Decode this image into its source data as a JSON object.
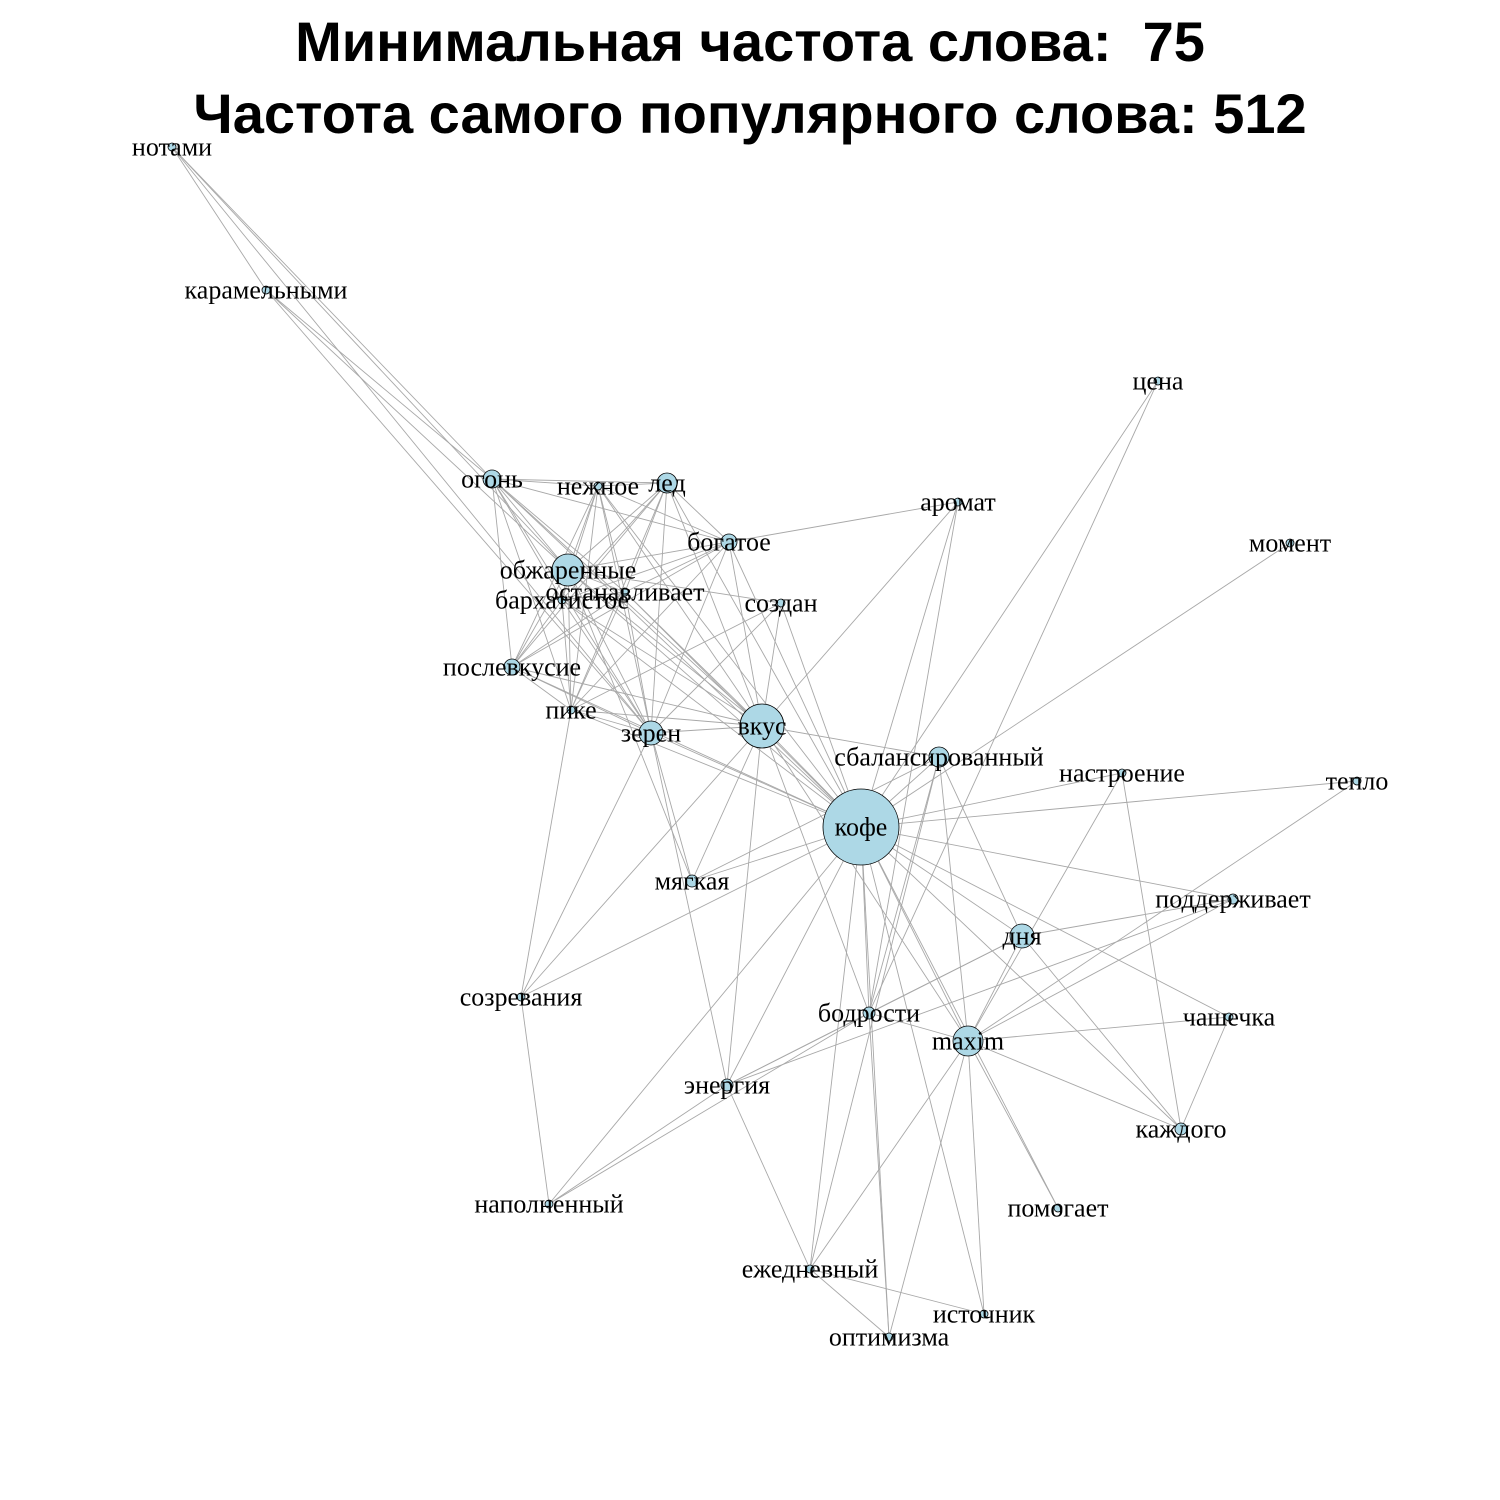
{
  "title": {
    "line1": "Минимальная частота слова:  75",
    "line2": "Частота самого популярного слова: 512"
  },
  "colors": {
    "node_fill": "#add8e6",
    "node_stroke": "#000000",
    "edge": "#a8a8a8",
    "text": "#000000",
    "background": "#ffffff"
  },
  "graph": {
    "nodes": [
      {
        "id": "нотами",
        "label": "нотами"
      },
      {
        "id": "карамельными",
        "label": "карамельными"
      },
      {
        "id": "огонь",
        "label": "огонь"
      },
      {
        "id": "нежное",
        "label": "нежное"
      },
      {
        "id": "лед",
        "label": "лед"
      },
      {
        "id": "аромат",
        "label": "аромат"
      },
      {
        "id": "богатое",
        "label": "богатое"
      },
      {
        "id": "обжаренные",
        "label": "обжаренные"
      },
      {
        "id": "бархатистое",
        "label": "бархатистое"
      },
      {
        "id": "останавливает",
        "label": "останавливает"
      },
      {
        "id": "создан",
        "label": "создан"
      },
      {
        "id": "цена",
        "label": "цена"
      },
      {
        "id": "момент",
        "label": "момент"
      },
      {
        "id": "послевкусие",
        "label": "послевкусие"
      },
      {
        "id": "пике",
        "label": "пике"
      },
      {
        "id": "зерен",
        "label": "зерен"
      },
      {
        "id": "вкус",
        "label": "вкус"
      },
      {
        "id": "сбалансированный",
        "label": "сбалансированный"
      },
      {
        "id": "настроение",
        "label": "настроение"
      },
      {
        "id": "тепло",
        "label": "тепло"
      },
      {
        "id": "кофе",
        "label": "кофе"
      },
      {
        "id": "мягкая",
        "label": "мягкая"
      },
      {
        "id": "поддерживает",
        "label": "поддерживает"
      },
      {
        "id": "дня",
        "label": "дня"
      },
      {
        "id": "созревания",
        "label": "созревания"
      },
      {
        "id": "бодрости",
        "label": "бодрости"
      },
      {
        "id": "чашечка",
        "label": "чашечка"
      },
      {
        "id": "maxim",
        "label": "maxim"
      },
      {
        "id": "энергия",
        "label": "энергия"
      },
      {
        "id": "каждого",
        "label": "каждого"
      },
      {
        "id": "наполненный",
        "label": "наполненный"
      },
      {
        "id": "помогает",
        "label": "помогает"
      },
      {
        "id": "ежедневный",
        "label": "ежедневный"
      },
      {
        "id": "источник",
        "label": "источник"
      },
      {
        "id": "оптимизма",
        "label": "оптимизма"
      }
    ],
    "edges": [
      [
        "нотами",
        "карамельными"
      ],
      [
        "нотами",
        "огонь"
      ],
      [
        "нотами",
        "обжаренные"
      ],
      [
        "нотами",
        "зерен"
      ],
      [
        "карамельными",
        "огонь"
      ],
      [
        "карамельными",
        "обжаренные"
      ],
      [
        "карамельными",
        "зерен"
      ],
      [
        "огонь",
        "нежное"
      ],
      [
        "огонь",
        "лед"
      ],
      [
        "огонь",
        "обжаренные"
      ],
      [
        "огонь",
        "бархатистое"
      ],
      [
        "огонь",
        "останавливает"
      ],
      [
        "огонь",
        "послевкусие"
      ],
      [
        "огонь",
        "пике"
      ],
      [
        "огонь",
        "зерен"
      ],
      [
        "огонь",
        "вкус"
      ],
      [
        "огонь",
        "богатое"
      ],
      [
        "огонь",
        "кофе"
      ],
      [
        "нежное",
        "лед"
      ],
      [
        "нежное",
        "обжаренные"
      ],
      [
        "нежное",
        "бархатистое"
      ],
      [
        "нежное",
        "останавливает"
      ],
      [
        "нежное",
        "послевкусие"
      ],
      [
        "нежное",
        "пике"
      ],
      [
        "нежное",
        "зерен"
      ],
      [
        "нежное",
        "вкус"
      ],
      [
        "нежное",
        "богатое"
      ],
      [
        "нежное",
        "кофе"
      ],
      [
        "лед",
        "обжаренные"
      ],
      [
        "лед",
        "бархатистое"
      ],
      [
        "лед",
        "останавливает"
      ],
      [
        "лед",
        "послевкусие"
      ],
      [
        "лед",
        "пике"
      ],
      [
        "лед",
        "зерен"
      ],
      [
        "лед",
        "вкус"
      ],
      [
        "лед",
        "богатое"
      ],
      [
        "лед",
        "кофе"
      ],
      [
        "богатое",
        "аромат"
      ],
      [
        "богатое",
        "обжаренные"
      ],
      [
        "богатое",
        "бархатистое"
      ],
      [
        "богатое",
        "останавливает"
      ],
      [
        "богатое",
        "послевкусие"
      ],
      [
        "богатое",
        "зерен"
      ],
      [
        "богатое",
        "вкус"
      ],
      [
        "богатое",
        "кофе"
      ],
      [
        "богатое",
        "пике"
      ],
      [
        "аромат",
        "вкус"
      ],
      [
        "аромат",
        "кофе"
      ],
      [
        "аромат",
        "бодрости"
      ],
      [
        "обжаренные",
        "бархатистое"
      ],
      [
        "обжаренные",
        "останавливает"
      ],
      [
        "обжаренные",
        "послевкусие"
      ],
      [
        "обжаренные",
        "пике"
      ],
      [
        "обжаренные",
        "зерен"
      ],
      [
        "обжаренные",
        "вкус"
      ],
      [
        "обжаренные",
        "кофе"
      ],
      [
        "обжаренные",
        "создан"
      ],
      [
        "обжаренные",
        "мягкая"
      ],
      [
        "бархатистое",
        "останавливает"
      ],
      [
        "бархатистое",
        "послевкусие"
      ],
      [
        "бархатистое",
        "пике"
      ],
      [
        "бархатистое",
        "зерен"
      ],
      [
        "бархатистое",
        "вкус"
      ],
      [
        "бархатистое",
        "кофе"
      ],
      [
        "останавливает",
        "послевкусие"
      ],
      [
        "останавливает",
        "пике"
      ],
      [
        "останавливает",
        "зерен"
      ],
      [
        "останавливает",
        "вкус"
      ],
      [
        "останавливает",
        "кофе"
      ],
      [
        "послевкусие",
        "пике"
      ],
      [
        "послевкусие",
        "зерен"
      ],
      [
        "послевкусие",
        "вкус"
      ],
      [
        "послевкусие",
        "кофе"
      ],
      [
        "пике",
        "зерен"
      ],
      [
        "пике",
        "вкус"
      ],
      [
        "пике",
        "кофе"
      ],
      [
        "пике",
        "созревания"
      ],
      [
        "создан",
        "зерен"
      ],
      [
        "создан",
        "вкус"
      ],
      [
        "создан",
        "кофе"
      ],
      [
        "создан",
        "пике"
      ],
      [
        "зерен",
        "вкус"
      ],
      [
        "зерен",
        "кофе"
      ],
      [
        "зерен",
        "мягкая"
      ],
      [
        "зерен",
        "созревания"
      ],
      [
        "зерен",
        "энергия"
      ],
      [
        "вкус",
        "кофе"
      ],
      [
        "вкус",
        "сбалансированный"
      ],
      [
        "вкус",
        "мягкая"
      ],
      [
        "вкус",
        "энергия"
      ],
      [
        "вкус",
        "maxim"
      ],
      [
        "вкус",
        "созревания"
      ],
      [
        "вкус",
        "бодрости"
      ],
      [
        "цена",
        "кофе"
      ],
      [
        "цена",
        "бодрости"
      ],
      [
        "момент",
        "кофе"
      ],
      [
        "сбалансированный",
        "кофе"
      ],
      [
        "сбалансированный",
        "maxim"
      ],
      [
        "сбалансированный",
        "бодрости"
      ],
      [
        "сбалансированный",
        "дня"
      ],
      [
        "сбалансированный",
        "ежедневный"
      ],
      [
        "сбалансированный",
        "мягкая"
      ],
      [
        "настроение",
        "кофе"
      ],
      [
        "настроение",
        "каждого"
      ],
      [
        "настроение",
        "maxim"
      ],
      [
        "тепло",
        "кофе"
      ],
      [
        "тепло",
        "maxim"
      ],
      [
        "кофе",
        "мягкая"
      ],
      [
        "кофе",
        "дня"
      ],
      [
        "кофе",
        "бодрости"
      ],
      [
        "кофе",
        "maxim"
      ],
      [
        "кофе",
        "энергия"
      ],
      [
        "кофе",
        "созревания"
      ],
      [
        "кофе",
        "поддерживает"
      ],
      [
        "кофе",
        "чашечка"
      ],
      [
        "кофе",
        "каждого"
      ],
      [
        "кофе",
        "помогает"
      ],
      [
        "кофе",
        "ежедневный"
      ],
      [
        "кофе",
        "источник"
      ],
      [
        "кофе",
        "оптимизма"
      ],
      [
        "кофе",
        "наполненный"
      ],
      [
        "дня",
        "maxim"
      ],
      [
        "дня",
        "бодрости"
      ],
      [
        "дня",
        "энергия"
      ],
      [
        "дня",
        "поддерживает"
      ],
      [
        "дня",
        "каждого"
      ],
      [
        "поддерживает",
        "энергия"
      ],
      [
        "поддерживает",
        "maxim"
      ],
      [
        "бодрости",
        "maxim"
      ],
      [
        "бодрости",
        "энергия"
      ],
      [
        "бодрости",
        "оптимизма"
      ],
      [
        "бодрости",
        "наполненный"
      ],
      [
        "maxim",
        "чашечка"
      ],
      [
        "maxim",
        "каждого"
      ],
      [
        "maxim",
        "помогает"
      ],
      [
        "maxim",
        "источник"
      ],
      [
        "maxim",
        "ежедневный"
      ],
      [
        "maxim",
        "оптимизма"
      ],
      [
        "чашечка",
        "каждого"
      ],
      [
        "энергия",
        "ежедневный"
      ],
      [
        "энергия",
        "наполненный"
      ],
      [
        "созревания",
        "наполненный"
      ],
      [
        "ежедневный",
        "оптимизма"
      ],
      [
        "ежедневный",
        "источник"
      ]
    ]
  }
}
